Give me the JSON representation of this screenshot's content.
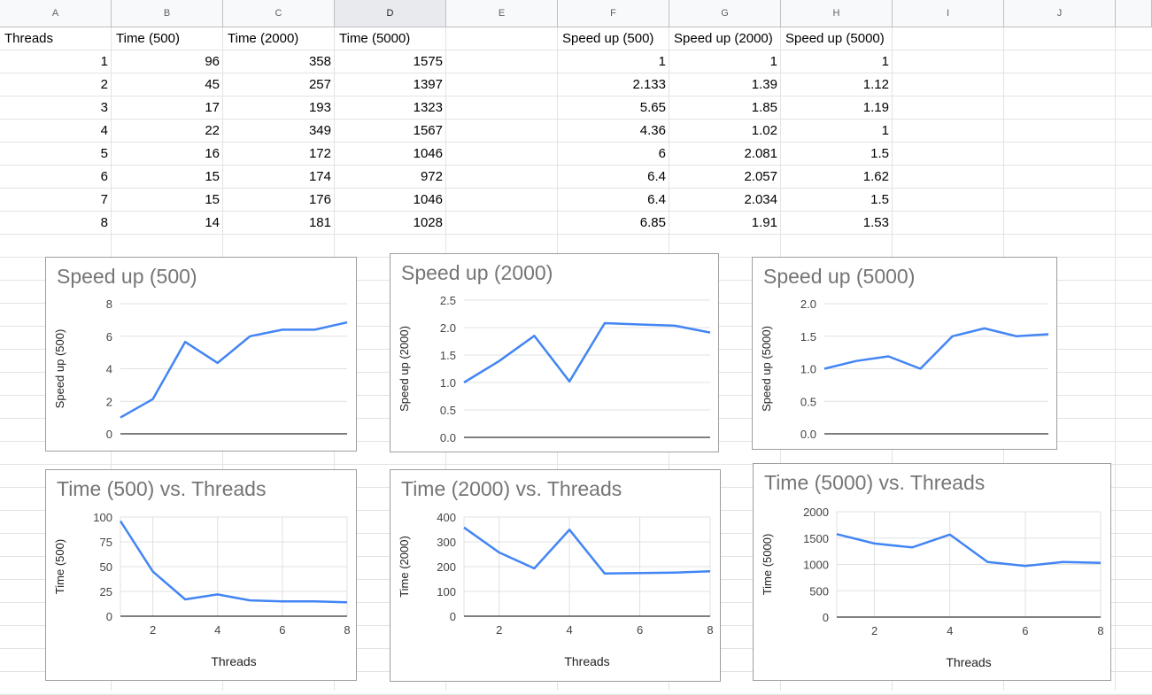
{
  "columns": [
    "A",
    "B",
    "C",
    "D",
    "E",
    "F",
    "G",
    "H",
    "I",
    "J"
  ],
  "selected_column": "D",
  "headers": {
    "A": "Threads",
    "B": "Time (500)",
    "C": "Time (2000)",
    "D": "Time (5000)",
    "F": "Speed up (500)",
    "G": "Speed up (2000)",
    "H": "Speed up (5000)"
  },
  "rows": [
    {
      "A": "1",
      "B": "96",
      "C": "358",
      "D": "1575",
      "F": "1",
      "G": "1",
      "H": "1"
    },
    {
      "A": "2",
      "B": "45",
      "C": "257",
      "D": "1397",
      "F": "2.133",
      "G": "1.39",
      "H": "1.12"
    },
    {
      "A": "3",
      "B": "17",
      "C": "193",
      "D": "1323",
      "F": "5.65",
      "G": "1.85",
      "H": "1.19"
    },
    {
      "A": "4",
      "B": "22",
      "C": "349",
      "D": "1567",
      "F": "4.36",
      "G": "1.02",
      "H": "1"
    },
    {
      "A": "5",
      "B": "16",
      "C": "172",
      "D": "1046",
      "F": "6",
      "G": "2.081",
      "H": "1.5"
    },
    {
      "A": "6",
      "B": "15",
      "C": "174",
      "D": "972",
      "F": "6.4",
      "G": "2.057",
      "H": "1.62"
    },
    {
      "A": "7",
      "B": "15",
      "C": "176",
      "D": "1046",
      "F": "6.4",
      "G": "2.034",
      "H": "1.5"
    },
    {
      "A": "8",
      "B": "14",
      "C": "181",
      "D": "1028",
      "F": "6.85",
      "G": "1.91",
      "H": "1.53"
    }
  ],
  "colors": {
    "series": "#4285f4",
    "grid": "#e0e0e0",
    "axis": "#333333",
    "title": "#757575"
  },
  "chart_data": [
    {
      "type": "line",
      "title": "Speed up (500)",
      "xlabel": "",
      "ylabel": "Speed up (500)",
      "x": [
        1,
        2,
        3,
        4,
        5,
        6,
        7,
        8
      ],
      "values": [
        1,
        2.133,
        5.65,
        4.36,
        6,
        6.4,
        6.4,
        6.85
      ],
      "ylim": [
        0,
        8
      ],
      "yticks": [
        "0",
        "2",
        "4",
        "6",
        "8"
      ],
      "xticks": [],
      "vgrid": false
    },
    {
      "type": "line",
      "title": "Speed up (2000)",
      "xlabel": "",
      "ylabel": "Speed up (2000)",
      "x": [
        1,
        2,
        3,
        4,
        5,
        6,
        7,
        8
      ],
      "values": [
        1,
        1.39,
        1.85,
        1.02,
        2.081,
        2.057,
        2.034,
        1.91
      ],
      "ylim": [
        0,
        2.5
      ],
      "yticks": [
        "0.0",
        "0.5",
        "1.0",
        "1.5",
        "2.0",
        "2.5"
      ],
      "xticks": [],
      "vgrid": false
    },
    {
      "type": "line",
      "title": "Speed up (5000)",
      "xlabel": "",
      "ylabel": "Speed up (5000)",
      "x": [
        1,
        2,
        3,
        4,
        5,
        6,
        7,
        8
      ],
      "values": [
        1,
        1.12,
        1.19,
        1,
        1.5,
        1.62,
        1.5,
        1.53
      ],
      "ylim": [
        0,
        2
      ],
      "yticks": [
        "0.0",
        "0.5",
        "1.0",
        "1.5",
        "2.0"
      ],
      "xticks": [],
      "vgrid": false
    },
    {
      "type": "line",
      "title": "Time (500) vs. Threads",
      "xlabel": "Threads",
      "ylabel": "Time (500)",
      "x": [
        1,
        2,
        3,
        4,
        5,
        6,
        7,
        8
      ],
      "values": [
        96,
        45,
        17,
        22,
        16,
        15,
        15,
        14
      ],
      "ylim": [
        0,
        100
      ],
      "yticks": [
        "0",
        "25",
        "50",
        "75",
        "100"
      ],
      "xlim": [
        1,
        8
      ],
      "xticks": [
        "2",
        "4",
        "6",
        "8"
      ],
      "vgrid": true
    },
    {
      "type": "line",
      "title": "Time (2000) vs. Threads",
      "xlabel": "Threads",
      "ylabel": "Time (2000)",
      "x": [
        1,
        2,
        3,
        4,
        5,
        6,
        7,
        8
      ],
      "values": [
        358,
        257,
        193,
        349,
        172,
        174,
        176,
        181
      ],
      "ylim": [
        0,
        400
      ],
      "yticks": [
        "0",
        "100",
        "200",
        "300",
        "400"
      ],
      "xlim": [
        1,
        8
      ],
      "xticks": [
        "2",
        "4",
        "6",
        "8"
      ],
      "vgrid": true
    },
    {
      "type": "line",
      "title": "Time (5000) vs. Threads",
      "xlabel": "Threads",
      "ylabel": "Time (5000)",
      "x": [
        1,
        2,
        3,
        4,
        5,
        6,
        7,
        8
      ],
      "values": [
        1575,
        1397,
        1323,
        1567,
        1046,
        972,
        1046,
        1028
      ],
      "ylim": [
        0,
        2000
      ],
      "yticks": [
        "0",
        "500",
        "1000",
        "1500",
        "2000"
      ],
      "xlim": [
        1,
        8
      ],
      "xticks": [
        "2",
        "4",
        "6",
        "8"
      ],
      "vgrid": true
    }
  ]
}
